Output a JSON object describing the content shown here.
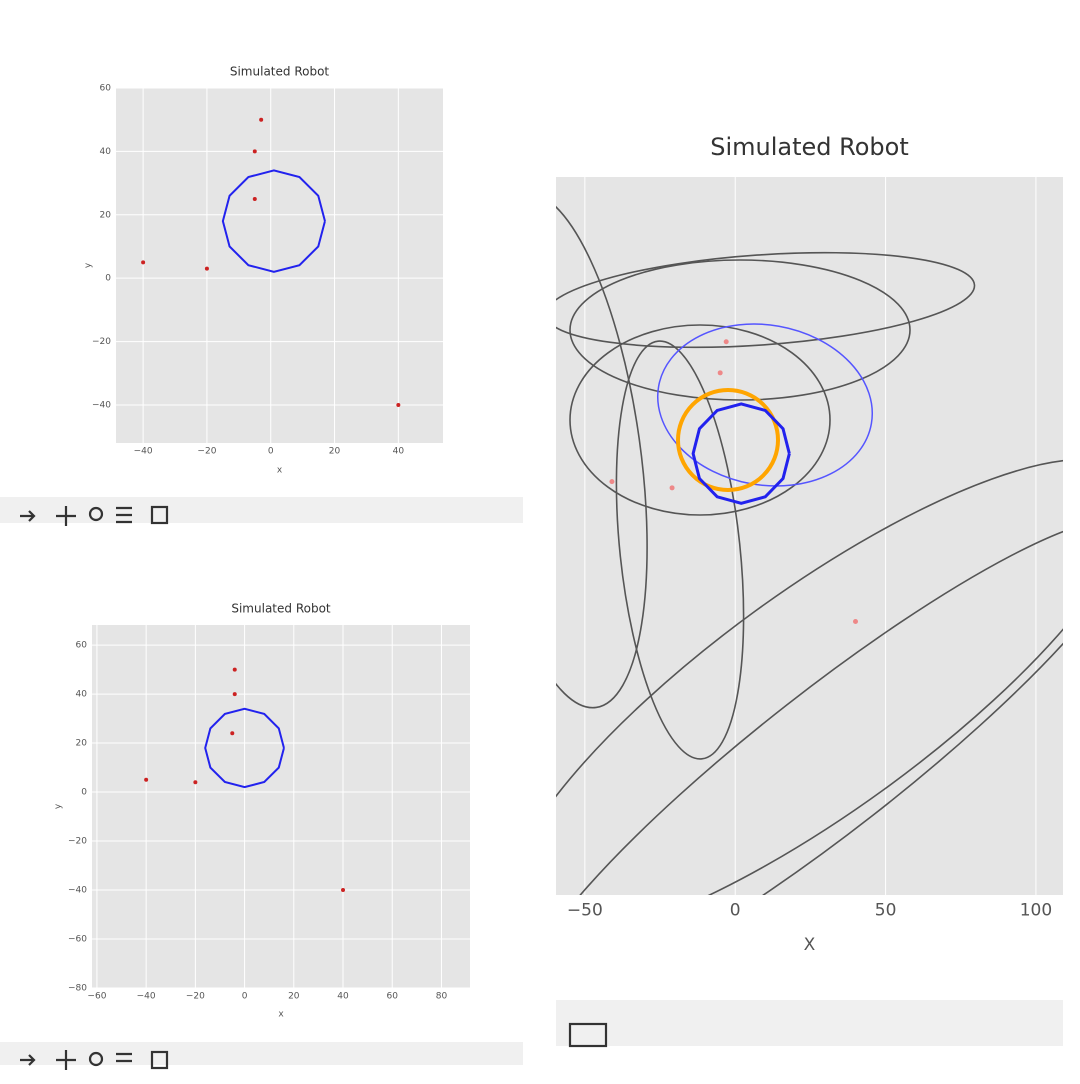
{
  "chart_data": [
    {
      "type": "scatter",
      "title": "Simulated Robot",
      "x_label": "x",
      "y_label": "y",
      "xlim": [
        -48.5,
        54
      ],
      "ylim": [
        -52,
        60
      ],
      "xticks": [
        {
          "value": -40,
          "label": "−40"
        },
        {
          "value": -20,
          "label": "−20"
        },
        0,
        20,
        40
      ],
      "yticks": [
        {
          "value": -40,
          "label": "−40"
        },
        {
          "value": -20,
          "label": "−20"
        },
        0,
        20,
        40,
        60
      ],
      "grid": true,
      "series": [
        {
          "mode": "line",
          "color": "#2222ee",
          "x": [
            17,
            14.9,
            9,
            1,
            -7,
            -12.9,
            -15,
            -12.9,
            -7,
            1,
            9,
            14.9,
            17
          ],
          "y": [
            18,
            26,
            31.9,
            34,
            31.9,
            26,
            18,
            10,
            4.1,
            2,
            4.1,
            10,
            18
          ]
        },
        {
          "mode": "markers",
          "color": "#cc2222",
          "x": [
            -40,
            40,
            -20,
            -5,
            -5,
            -3
          ],
          "y": [
            5,
            -40,
            3,
            25,
            40,
            50
          ]
        }
      ]
    },
    {
      "type": "scatter",
      "title": "Simulated Robot",
      "x_label": "x",
      "y_label": "y",
      "xlim": [
        -62,
        91.6
      ],
      "ylim": [
        -80,
        68.2
      ],
      "xticks": [
        {
          "value": -60,
          "label": "−60"
        },
        {
          "value": -40,
          "label": "−40"
        },
        {
          "value": -20,
          "label": "−20"
        },
        0,
        20,
        40,
        60,
        80
      ],
      "yticks": [
        {
          "value": -80,
          "label": "−80"
        },
        {
          "value": -60,
          "label": "−60"
        },
        {
          "value": -40,
          "label": "−40"
        },
        {
          "value": -20,
          "label": "−20"
        },
        0,
        20,
        40,
        60
      ],
      "grid": true,
      "series": [
        {
          "mode": "line",
          "color": "#2222ee",
          "x": [
            16,
            13.9,
            8,
            0,
            -8,
            -13.9,
            -16,
            -13.9,
            -8,
            0,
            8,
            13.9,
            16
          ],
          "y": [
            18,
            26,
            31.9,
            34,
            31.9,
            26,
            18,
            10,
            4.1,
            2,
            4.1,
            10,
            18
          ]
        },
        {
          "mode": "markers",
          "color": "#cc2222",
          "x": [
            -40,
            40,
            -20,
            -5,
            -4,
            -4
          ],
          "y": [
            5,
            -40,
            4,
            24,
            40,
            50
          ]
        }
      ]
    },
    {
      "type": "scatter",
      "title": "Simulated Robot",
      "x_label": "X",
      "xlim": [
        -59.6,
        109
      ],
      "ylim": [
        -128,
        103
      ],
      "xticks": [
        {
          "value": -50,
          "label": "−50"
        },
        0,
        50,
        100
      ],
      "grid": true,
      "series": [
        {
          "mode": "line",
          "color": "#2222ee",
          "x": [
            18,
            15.9,
            10,
            2,
            -6,
            -11.9,
            -14,
            -11.9,
            -6,
            2,
            10,
            15.9,
            18
          ],
          "y": [
            14,
            22,
            27.9,
            30,
            27.9,
            22,
            14,
            6,
            0.1,
            -2,
            0.1,
            6,
            14
          ]
        },
        {
          "mode": "markers",
          "color": "#ee8888",
          "x": [
            -3,
            -5,
            -21,
            -41,
            40
          ],
          "y": [
            50,
            40,
            3,
            5,
            -40
          ]
        }
      ]
    }
  ]
}
